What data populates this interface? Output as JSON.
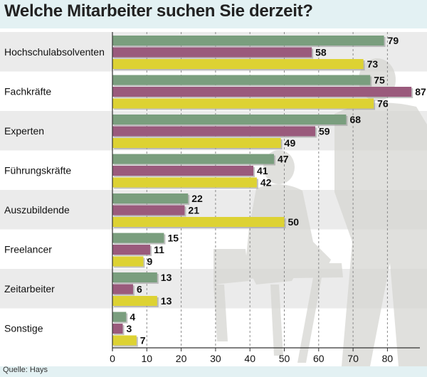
{
  "chart_data": {
    "type": "bar",
    "orientation": "horizontal",
    "title": "Welche Mitarbeiter suchen Sie derzeit?",
    "source": "Quelle: Hays",
    "categories": [
      "Hochschulabsolventen",
      "Fachkräfte",
      "Experten",
      "Führungskräfte",
      "Auszubildende",
      "Freelancer",
      "Zeitarbeiter",
      "Sonstige"
    ],
    "series": [
      {
        "name": "series-1",
        "color": "#7a9e7e",
        "values": [
          79,
          75,
          68,
          47,
          22,
          15,
          13,
          4
        ]
      },
      {
        "name": "series-2",
        "color": "#9a5a7c",
        "values": [
          58,
          87,
          59,
          41,
          21,
          11,
          6,
          3
        ]
      },
      {
        "name": "series-3",
        "color": "#ddd233",
        "values": [
          73,
          76,
          49,
          42,
          50,
          9,
          13,
          7
        ]
      }
    ],
    "xlim": [
      0,
      90
    ],
    "xticks": [
      0,
      10,
      20,
      30,
      40,
      50,
      60,
      70,
      80
    ],
    "grid": true
  }
}
